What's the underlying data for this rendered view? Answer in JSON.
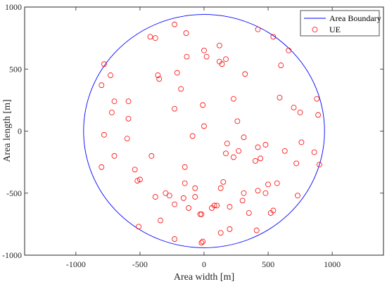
{
  "chart_data": {
    "type": "scatter",
    "title": "",
    "xlabel": "Area width [m]",
    "ylabel": "Area length [m]",
    "xlim": [
      -1400,
      1400
    ],
    "ylim": [
      -1000,
      1000
    ],
    "xticks": [
      -1000,
      -500,
      0,
      500,
      1000
    ],
    "yticks": [
      -1000,
      -500,
      0,
      500,
      1000
    ],
    "grid": false,
    "legend_position": "top-right",
    "boundary": {
      "name": "Area Boundary",
      "center": [
        0,
        0
      ],
      "radius": 940,
      "color": "#0000ff"
    },
    "series": [
      {
        "name": "UE",
        "marker": "circle",
        "color": "#ff0000",
        "points": [
          [
            -230,
            860
          ],
          [
            -420,
            760
          ],
          [
            -380,
            750
          ],
          [
            -140,
            790
          ],
          [
            120,
            690
          ],
          [
            420,
            820
          ],
          [
            540,
            760
          ],
          [
            660,
            650
          ],
          [
            -780,
            540
          ],
          [
            -730,
            450
          ],
          [
            -800,
            370
          ],
          [
            -135,
            600
          ],
          [
            0,
            650
          ],
          [
            20,
            600
          ],
          [
            120,
            560
          ],
          [
            170,
            580
          ],
          [
            140,
            540
          ],
          [
            -360,
            450
          ],
          [
            -350,
            420
          ],
          [
            -210,
            470
          ],
          [
            320,
            460
          ],
          [
            600,
            530
          ],
          [
            -700,
            240
          ],
          [
            -590,
            240
          ],
          [
            -720,
            150
          ],
          [
            -590,
            100
          ],
          [
            -180,
            340
          ],
          [
            -230,
            180
          ],
          [
            -10,
            210
          ],
          [
            230,
            260
          ],
          [
            590,
            270
          ],
          [
            880,
            260
          ],
          [
            700,
            190
          ],
          [
            750,
            150
          ],
          [
            890,
            130
          ],
          [
            260,
            80
          ],
          [
            0,
            40
          ],
          [
            -780,
            -30
          ],
          [
            -600,
            -60
          ],
          [
            -90,
            -40
          ],
          [
            180,
            -100
          ],
          [
            310,
            -50
          ],
          [
            420,
            -130
          ],
          [
            480,
            -110
          ],
          [
            630,
            -160
          ],
          [
            760,
            -90
          ],
          [
            860,
            -170
          ],
          [
            900,
            -270
          ],
          [
            720,
            -260
          ],
          [
            270,
            -160
          ],
          [
            170,
            -180
          ],
          [
            230,
            -210
          ],
          [
            400,
            -240
          ],
          [
            440,
            -220
          ],
          [
            -700,
            -200
          ],
          [
            -410,
            -200
          ],
          [
            -800,
            -290
          ],
          [
            -540,
            -310
          ],
          [
            -500,
            -390
          ],
          [
            -520,
            -400
          ],
          [
            -150,
            -290
          ],
          [
            -150,
            -420
          ],
          [
            -70,
            -460
          ],
          [
            130,
            -460
          ],
          [
            150,
            -410
          ],
          [
            310,
            -500
          ],
          [
            420,
            -480
          ],
          [
            480,
            -500
          ],
          [
            500,
            -430
          ],
          [
            570,
            -420
          ],
          [
            730,
            -520
          ],
          [
            -380,
            -530
          ],
          [
            -300,
            -500
          ],
          [
            -270,
            -520
          ],
          [
            -160,
            -540
          ],
          [
            -70,
            -530
          ],
          [
            -230,
            -590
          ],
          [
            -120,
            -620
          ],
          [
            80,
            -600
          ],
          [
            100,
            -600
          ],
          [
            60,
            -620
          ],
          [
            200,
            -610
          ],
          [
            300,
            -560
          ],
          [
            350,
            -660
          ],
          [
            540,
            -640
          ],
          [
            -30,
            -670
          ],
          [
            -20,
            -670
          ],
          [
            -340,
            -720
          ],
          [
            -510,
            -770
          ],
          [
            130,
            -820
          ],
          [
            200,
            -790
          ],
          [
            410,
            -800
          ],
          [
            520,
            -660
          ],
          [
            -230,
            -870
          ],
          [
            -10,
            -890
          ],
          [
            -20,
            -900
          ]
        ]
      }
    ]
  }
}
